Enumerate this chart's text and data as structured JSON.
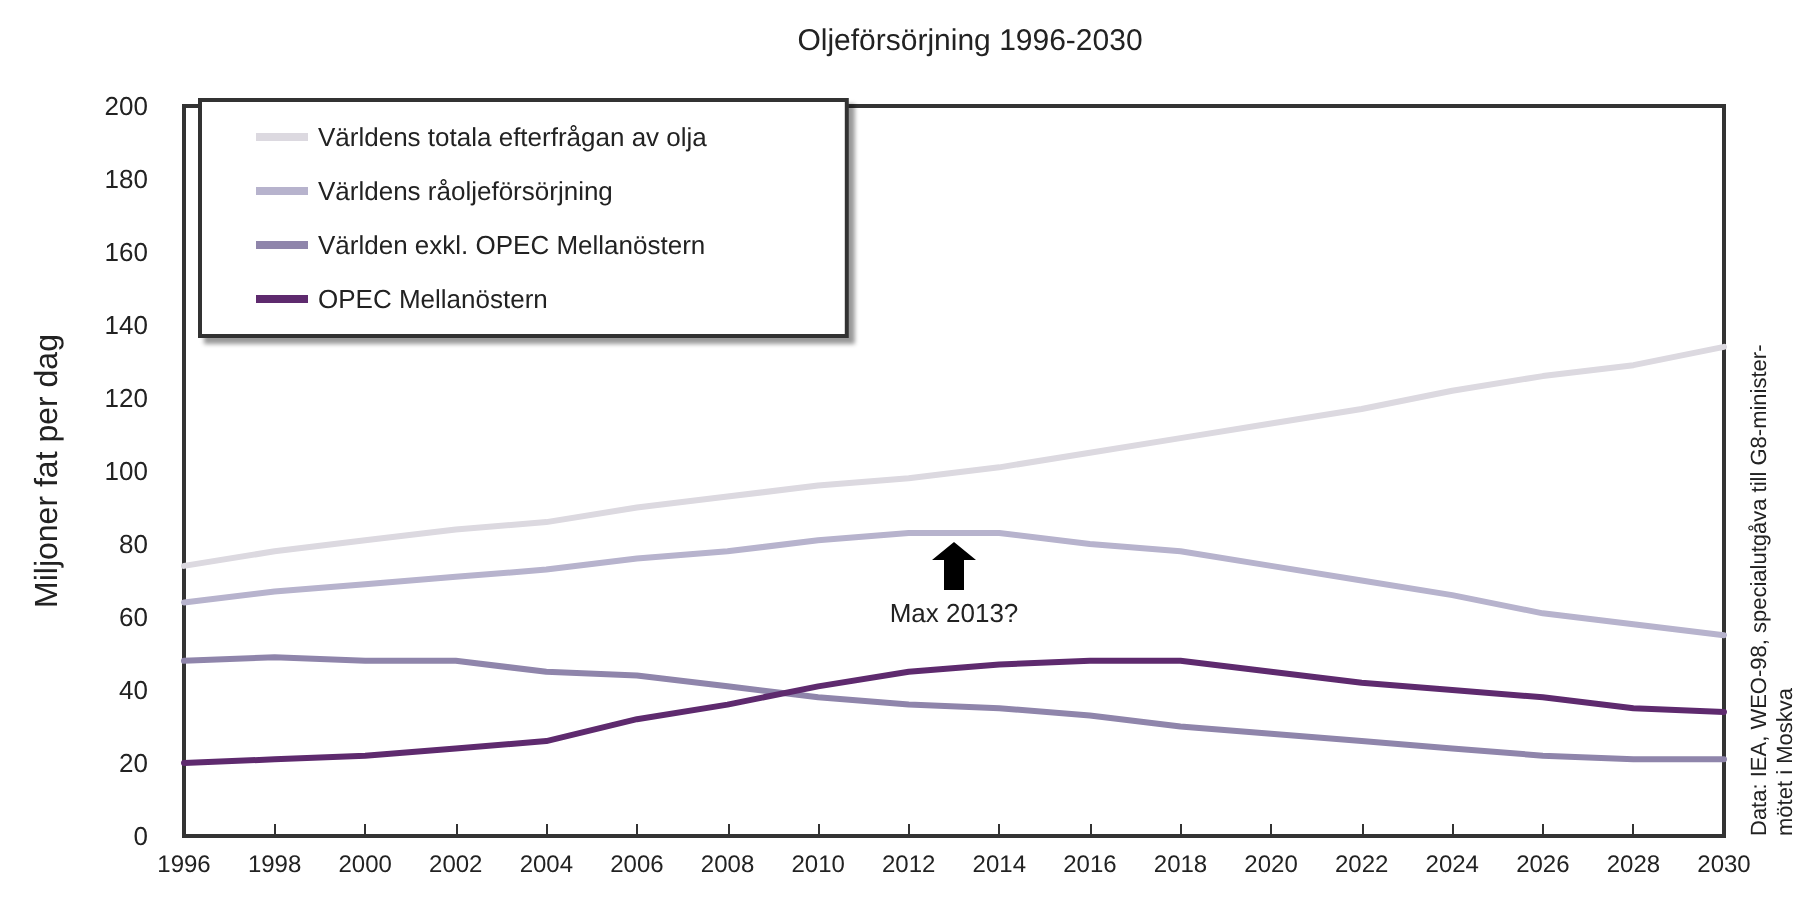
{
  "chart_data": {
    "type": "line",
    "title": "Oljeförsörjning 1996-2030",
    "ylabel": "Miljoner fat per dag",
    "x": [
      1996,
      1998,
      2000,
      2002,
      2004,
      2006,
      2008,
      2010,
      2012,
      2014,
      2016,
      2018,
      2020,
      2022,
      2024,
      2026,
      2028,
      2030
    ],
    "series": [
      {
        "name": "Världens totala efterfrågan av olja",
        "color": "#dcd9e0",
        "values": [
          74,
          78,
          81,
          84,
          86,
          90,
          93,
          96,
          98,
          101,
          105,
          109,
          113,
          117,
          122,
          126,
          129,
          134
        ]
      },
      {
        "name": "Världens råoljeförsörjning",
        "color": "#b7b3cd",
        "values": [
          64,
          67,
          69,
          71,
          73,
          76,
          78,
          81,
          83,
          83,
          80,
          78,
          74,
          70,
          66,
          61,
          58,
          55
        ]
      },
      {
        "name": "Världen exkl. OPEC Mellanöstern",
        "color": "#8f85ab",
        "values": [
          48,
          49,
          48,
          48,
          45,
          44,
          41,
          38,
          36,
          35,
          33,
          30,
          28,
          26,
          24,
          22,
          21,
          21
        ]
      },
      {
        "name": "OPEC Mellanöstern",
        "color": "#5e2a6e",
        "values": [
          20,
          21,
          22,
          24,
          26,
          32,
          36,
          41,
          45,
          47,
          48,
          48,
          45,
          42,
          40,
          38,
          35,
          34
        ]
      }
    ],
    "xlim": [
      1996,
      2030
    ],
    "xticks": [
      1996,
      1998,
      2000,
      2002,
      2004,
      2006,
      2008,
      2010,
      2012,
      2014,
      2016,
      2018,
      2020,
      2022,
      2024,
      2026,
      2028,
      2030
    ],
    "ylim": [
      0,
      200
    ],
    "yticks": [
      0,
      20,
      40,
      60,
      80,
      100,
      120,
      140,
      160,
      180,
      200
    ],
    "grid": false,
    "legend": "top left",
    "marker": "none",
    "line_style": "solid",
    "annotations": [
      {
        "text": "Max 2013?",
        "x": 2013,
        "y": 83
      },
      "Data: IEA, WEO-98, specialutgåva till G8-minister-\nmötet i Moskva"
    ]
  }
}
